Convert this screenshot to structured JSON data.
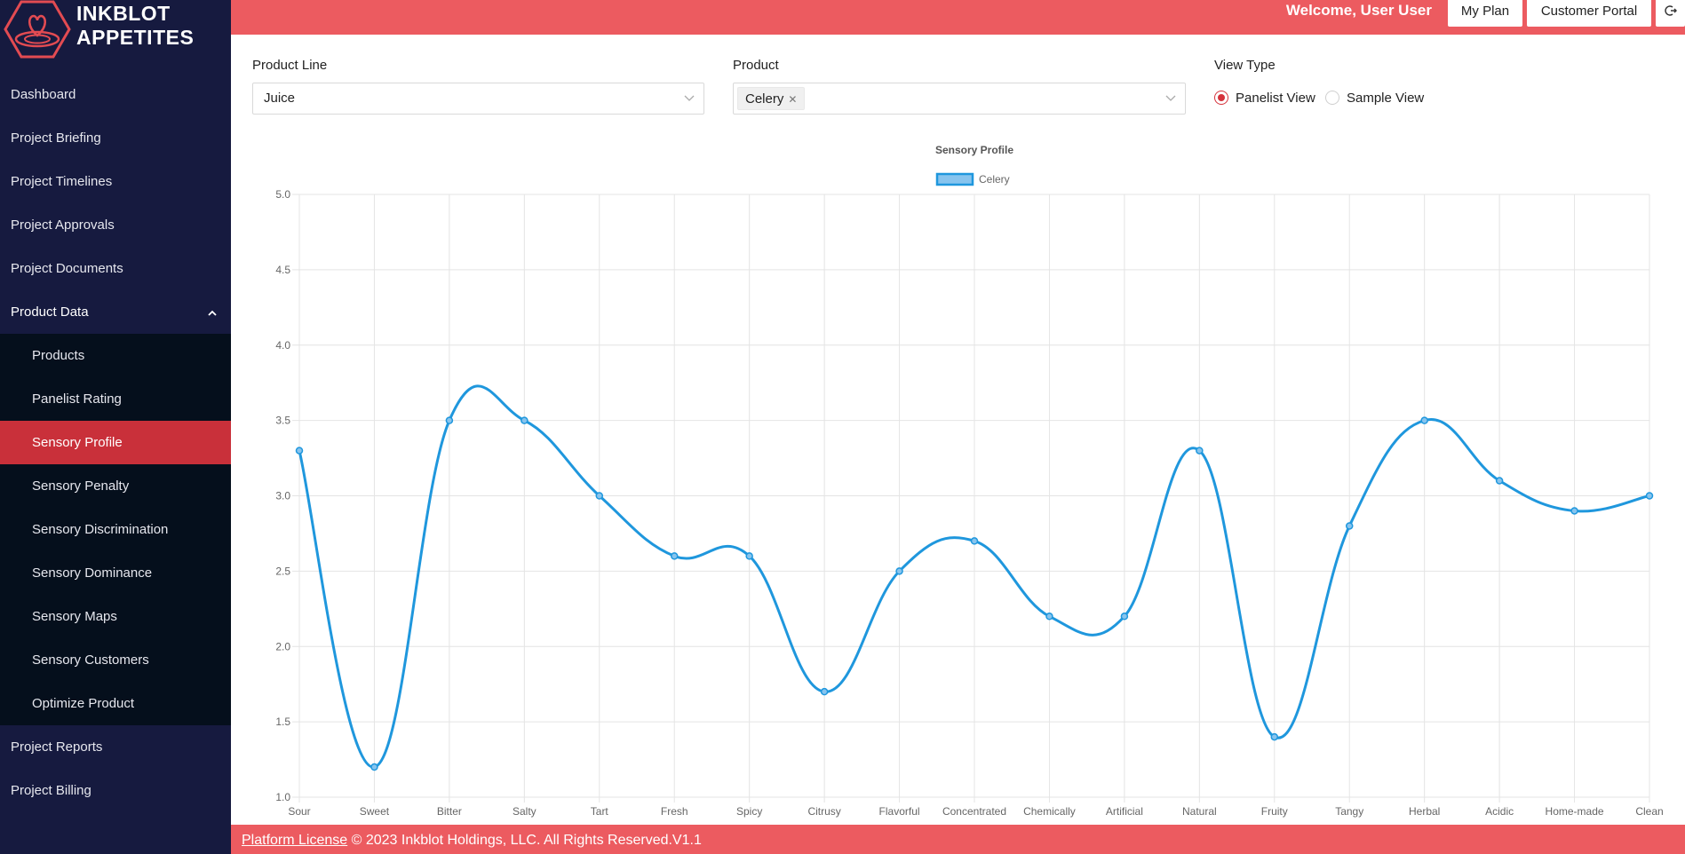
{
  "brand": {
    "line1": "INKBLOT",
    "line2": "APPETITES"
  },
  "sidebar": {
    "items_top": [
      {
        "label": "Dashboard"
      },
      {
        "label": "Project Briefing"
      },
      {
        "label": "Project Timelines"
      },
      {
        "label": "Project Approvals"
      },
      {
        "label": "Project Documents"
      }
    ],
    "open_group": {
      "label": "Product Data",
      "expanded": true
    },
    "subitems": [
      {
        "label": "Products"
      },
      {
        "label": "Panelist Rating"
      },
      {
        "label": "Sensory Profile",
        "active": true
      },
      {
        "label": "Sensory Penalty"
      },
      {
        "label": "Sensory Discrimination"
      },
      {
        "label": "Sensory Dominance"
      },
      {
        "label": "Sensory Maps"
      },
      {
        "label": "Sensory Customers"
      },
      {
        "label": "Optimize Product"
      }
    ],
    "items_bottom": [
      {
        "label": "Project Reports"
      },
      {
        "label": "Project Billing"
      }
    ]
  },
  "header": {
    "welcome": "Welcome, User User",
    "my_plan": "My Plan",
    "customer_portal": "Customer Portal",
    "logout_icon": "logout-icon"
  },
  "filters": {
    "product_line": {
      "label": "Product Line",
      "value": "Juice"
    },
    "product": {
      "label": "Product",
      "tag": "Celery"
    },
    "view_type": {
      "label": "View Type",
      "options": [
        "Panelist View",
        "Sample View"
      ],
      "selected": "Panelist View"
    }
  },
  "chart_data": {
    "type": "line",
    "title": "Sensory Profile",
    "categories": [
      "Sour",
      "Sweet",
      "Bitter",
      "Salty",
      "Tart",
      "Fresh",
      "Spicy",
      "Citrusy",
      "Flavorful",
      "Concentrated",
      "Chemically",
      "Artificial",
      "Natural",
      "Fruity",
      "Tangy",
      "Herbal",
      "Acidic",
      "Home-made",
      "Clean"
    ],
    "series": [
      {
        "name": "Celery",
        "color": "#1f97dd",
        "values": [
          3.3,
          1.2,
          3.5,
          3.5,
          3.0,
          2.6,
          2.6,
          1.7,
          2.5,
          2.7,
          2.2,
          2.2,
          3.3,
          1.4,
          2.8,
          3.5,
          3.1,
          2.9,
          3.0
        ]
      }
    ],
    "ylim": [
      1.0,
      5.0
    ],
    "yticks": [
      "5.0",
      "4.5",
      "4.0",
      "3.5",
      "3.0",
      "2.5",
      "2.0",
      "1.5",
      "1.0"
    ],
    "grid": true,
    "legend": "top"
  },
  "footer": {
    "link": "Platform License",
    "text": " © 2023 Inkblot Holdings, LLC. All Rights Reserved.V1.1"
  }
}
